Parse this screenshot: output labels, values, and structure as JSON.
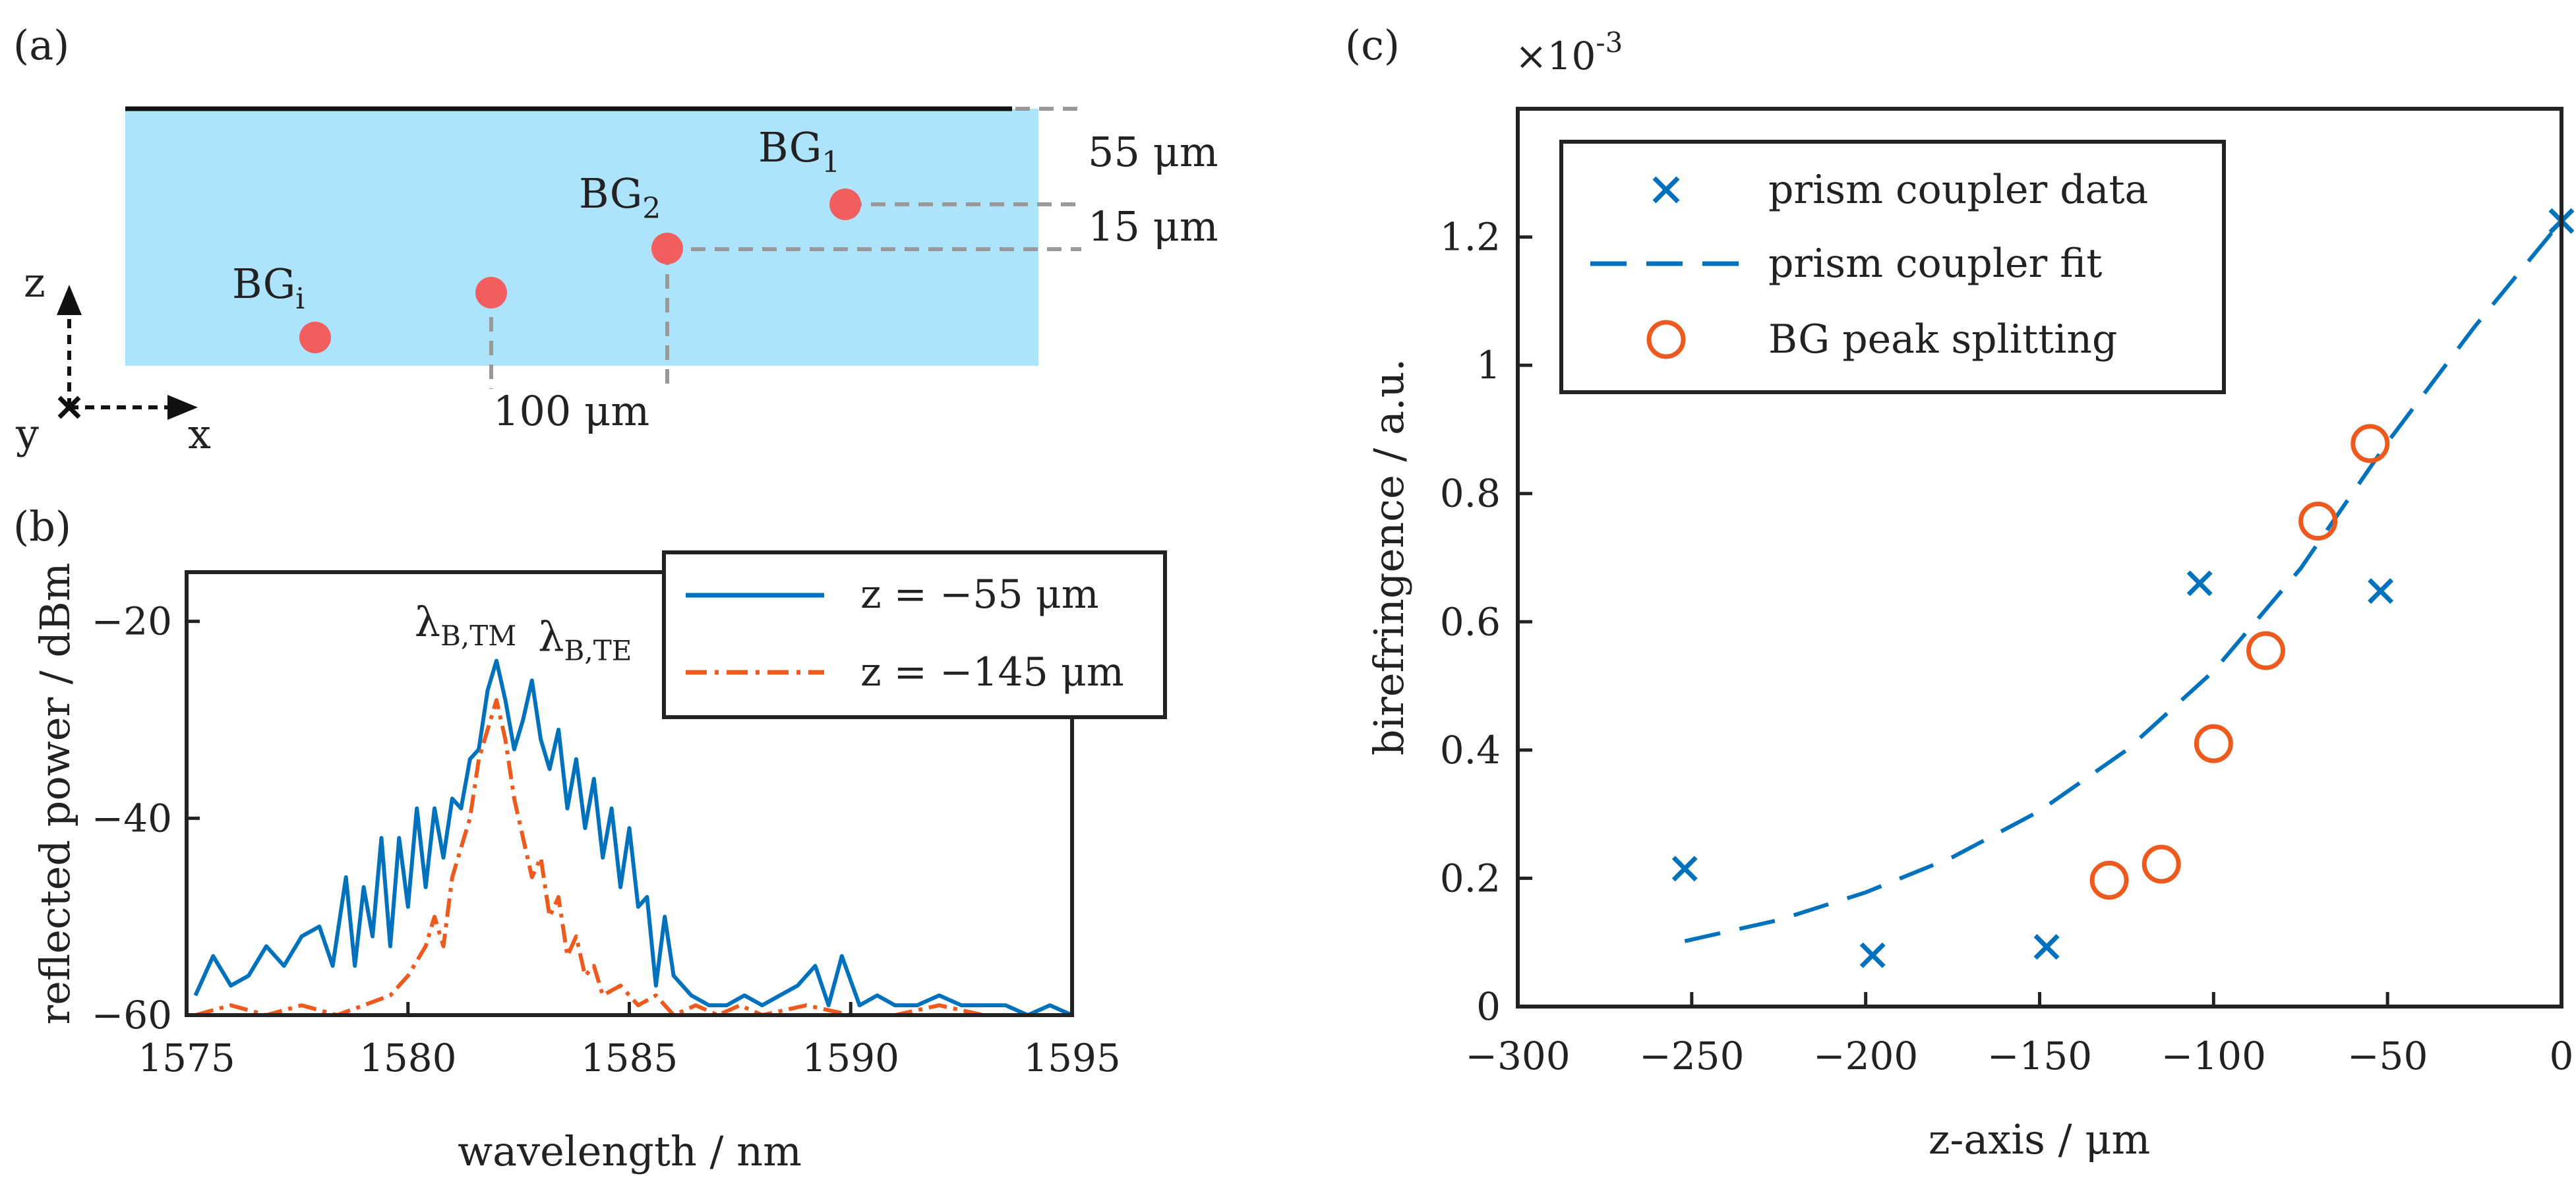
{
  "colors": {
    "blue": "#0072BD",
    "orange": "#EE5A1E",
    "substrate": "#ADE3FB",
    "grating": "#F25D5D",
    "dim": "#999999"
  },
  "panel_a": {
    "label": "(a)",
    "gratings": [
      {
        "name": "BG",
        "sub": "1"
      },
      {
        "name": "BG",
        "sub": "2"
      },
      {
        "name": "BG",
        "sub": "i"
      }
    ],
    "dims": {
      "depth_1": "55 μm",
      "spacing_z": "15 μm",
      "spacing_x": "100 μm"
    },
    "axes": {
      "z": "z",
      "x": "x",
      "y": "y"
    }
  },
  "chart_data": [
    {
      "panel": "(b)",
      "type": "line",
      "xlabel": "wavelength / nm",
      "ylabel": "reflected power / dBm",
      "xlim": [
        1575,
        1595
      ],
      "ylim": [
        -60,
        -15
      ],
      "xticks": [
        1575,
        1580,
        1585,
        1590,
        1595
      ],
      "yticks": [
        -60,
        -40,
        -20
      ],
      "xtick_labels": [
        "1575",
        "1580",
        "1585",
        "1590",
        "1595"
      ],
      "ytick_labels": [
        "−60",
        "−40",
        "−20"
      ],
      "annotations": [
        {
          "name": "λ",
          "sub": "B,TM",
          "x": 1581.3,
          "y": -21.5
        },
        {
          "name": "λ",
          "sub": "B,TE",
          "x": 1584.0,
          "y": -23.0
        }
      ],
      "series": [
        {
          "name": "z = −55 μm",
          "style": "solid",
          "x": [
            1575.2,
            1575.6,
            1576.0,
            1576.4,
            1576.8,
            1577.2,
            1577.6,
            1578.0,
            1578.3,
            1578.6,
            1578.8,
            1579.0,
            1579.2,
            1579.4,
            1579.6,
            1579.8,
            1580.0,
            1580.2,
            1580.4,
            1580.6,
            1580.8,
            1581.0,
            1581.2,
            1581.4,
            1581.6,
            1581.8,
            1582.0,
            1582.2,
            1582.4,
            1582.6,
            1582.8,
            1583.0,
            1583.2,
            1583.4,
            1583.6,
            1583.8,
            1584.0,
            1584.2,
            1584.4,
            1584.6,
            1584.8,
            1585.0,
            1585.2,
            1585.4,
            1585.6,
            1585.8,
            1586.0,
            1586.4,
            1586.8,
            1587.2,
            1587.6,
            1588.0,
            1588.4,
            1588.8,
            1589.2,
            1589.5,
            1589.8,
            1590.2,
            1590.6,
            1591.0,
            1591.5,
            1592.0,
            1592.5,
            1593.0,
            1593.5,
            1594.0,
            1594.5,
            1595.0
          ],
          "y": [
            -58,
            -54,
            -57,
            -56,
            -53,
            -55,
            -52,
            -51,
            -55,
            -46,
            -55,
            -47,
            -52,
            -42,
            -53,
            -42,
            -49,
            -39,
            -47,
            -39,
            -44,
            -38,
            -39,
            -34,
            -33,
            -27,
            -24,
            -28,
            -33,
            -30,
            -26,
            -32,
            -35,
            -31,
            -39,
            -34,
            -41,
            -36,
            -44,
            -39,
            -47,
            -41,
            -49,
            -48,
            -57,
            -50,
            -56,
            -58,
            -59,
            -59,
            -58,
            -59,
            -58,
            -57,
            -55,
            -59,
            -54,
            -59,
            -58,
            -59,
            -59,
            -58,
            -59,
            -59,
            -59,
            -60,
            -59,
            -60
          ]
        },
        {
          "name": "z = −145 μm",
          "style": "dashdot",
          "x": [
            1575.2,
            1576.0,
            1576.8,
            1577.6,
            1578.4,
            1579.0,
            1579.6,
            1580.0,
            1580.4,
            1580.6,
            1580.8,
            1581.0,
            1581.2,
            1581.4,
            1581.6,
            1581.8,
            1582.0,
            1582.2,
            1582.4,
            1582.6,
            1582.8,
            1583.0,
            1583.2,
            1583.4,
            1583.6,
            1583.8,
            1584.0,
            1584.2,
            1584.4,
            1584.8,
            1585.2,
            1585.6,
            1586.0,
            1586.5,
            1587.0,
            1587.5,
            1588.0,
            1589.0,
            1590.0,
            1591.0,
            1592.0,
            1593.0,
            1594.0,
            1595.0
          ],
          "y": [
            -60,
            -59,
            -60,
            -59,
            -60,
            -59,
            -58,
            -56,
            -53,
            -50,
            -53,
            -46,
            -43,
            -40,
            -34,
            -31,
            -28,
            -32,
            -38,
            -42,
            -46,
            -44,
            -50,
            -48,
            -54,
            -52,
            -56,
            -55,
            -58,
            -57,
            -59,
            -58,
            -60,
            -59,
            -60,
            -59,
            -60,
            -59,
            -60,
            -60,
            -59,
            -60,
            -60,
            -60
          ]
        }
      ]
    },
    {
      "panel": "(c)",
      "type": "scatter",
      "xlabel": "z-axis / μm",
      "ylabel": "birefringence / a.u.",
      "exponent_label": "×10",
      "exponent_power": "-3",
      "xlim": [
        -300,
        0
      ],
      "ylim": [
        0,
        1.4
      ],
      "xticks": [
        -300,
        -250,
        -200,
        -150,
        -100,
        -50,
        0
      ],
      "yticks": [
        0,
        0.2,
        0.4,
        0.6,
        0.8,
        1.0,
        1.2
      ],
      "xtick_labels": [
        "−300",
        "−250",
        "−200",
        "−150",
        "−100",
        "−50",
        "0"
      ],
      "ytick_labels": [
        "0",
        "0.2",
        "0.4",
        "0.6",
        "0.8",
        "1",
        "1.2"
      ],
      "series": [
        {
          "name": "prism coupler data",
          "marker": "x",
          "x": [
            -252,
            -198,
            -148,
            -104,
            -52,
            0
          ],
          "y": [
            0.215,
            0.08,
            0.093,
            0.66,
            0.648,
            1.225
          ]
        },
        {
          "name": "prism coupler fit",
          "style": "dashed",
          "x": [
            -252,
            -225,
            -200,
            -175,
            -150,
            -125,
            -100,
            -75,
            -50,
            -25,
            0
          ],
          "y": [
            0.102,
            0.135,
            0.178,
            0.233,
            0.305,
            0.4,
            0.523,
            0.683,
            0.88,
            1.06,
            1.225
          ]
        },
        {
          "name": "BG peak splitting",
          "marker": "o",
          "x": [
            -130,
            -115,
            -100,
            -85,
            -70,
            -55
          ],
          "y": [
            0.197,
            0.222,
            0.41,
            0.555,
            0.757,
            0.878
          ]
        }
      ]
    }
  ]
}
